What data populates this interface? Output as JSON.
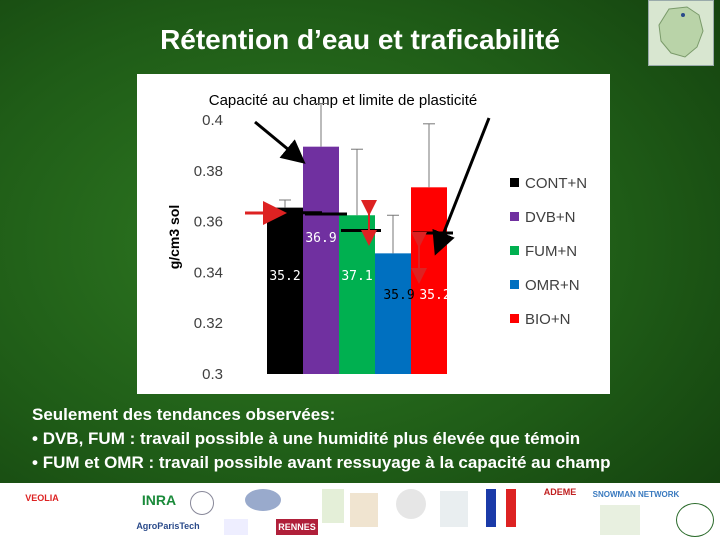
{
  "slide": {
    "title": "Rétention d’eau et traficabilité"
  },
  "summary": {
    "heading": "Seulement des tendances observées:",
    "bullets": [
      "DVB, FUM : travail possible à une humidité plus élevée que témoin",
      "FUM et OMR : travail possible avant ressuyage à la capacité au champ"
    ]
  },
  "logos": [
    {
      "name": "veolia",
      "label": "VEOLIA",
      "color": "#d22"
    },
    {
      "name": "inra",
      "label": "INRA",
      "color": "#1a8a3a"
    },
    {
      "name": "agroparistech",
      "label": "AgroParisTech",
      "color": "#2a4a8a"
    },
    {
      "name": "rennes",
      "label": "RENNES",
      "color": "#b0203a"
    },
    {
      "name": "ademe",
      "label": "ADEME",
      "color": "#c02020"
    },
    {
      "name": "snowman",
      "label": "SNOWMAN NETWORK",
      "color": "#3a7abf"
    }
  ],
  "chart_data": {
    "type": "bar",
    "title": "Capacité au champ et limite de plasticité",
    "ylabel": "g/cm3 sol",
    "ylim": [
      0.3,
      0.4
    ],
    "yticks": [
      "0.3",
      "0.32",
      "0.34",
      "0.36",
      "0.38",
      "0.4"
    ],
    "grid": false,
    "legend_position": "right",
    "categories": [
      "CONT+N",
      "DVB+N",
      "FUM+N",
      "OMR+N",
      "BIO+N"
    ],
    "series": [
      {
        "name": "CONT+N",
        "value": 0.3655,
        "error_top": 0.3685,
        "color": "#000000",
        "label": "35.2"
      },
      {
        "name": "DVB+N",
        "value": 0.3895,
        "error_top": 0.4065,
        "color": "#7030a0",
        "label": "36.9"
      },
      {
        "name": "FUM+N",
        "value": 0.3625,
        "error_top": 0.3885,
        "color": "#00b050",
        "label": "37.1"
      },
      {
        "name": "OMR+N",
        "value": 0.3475,
        "error_top": 0.3625,
        "color": "#0070c0",
        "label": "35.9"
      },
      {
        "name": "BIO+N",
        "value": 0.3735,
        "error_top": 0.3985,
        "color": "#ff0000",
        "label": "35.2"
      }
    ],
    "plasticity_limits": [
      0.3635,
      0.363,
      0.3565,
      0.3555
    ]
  }
}
